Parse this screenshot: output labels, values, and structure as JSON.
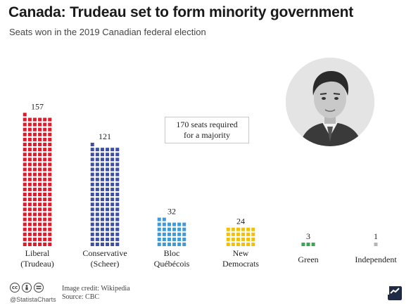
{
  "header": {
    "title": "Canada: Trudeau set to form minority government",
    "subtitle": "Seats won in the 2019 Canadian federal election"
  },
  "note": {
    "line1": "170 seats required",
    "line2": "for a majority"
  },
  "footer": {
    "license_icons": [
      "cc-icon",
      "attribution-icon",
      "no-derivatives-icon"
    ],
    "handle": "@StatistaCharts",
    "image_credit": "Image credit: Wikipedia",
    "source": "Source: CBC"
  },
  "photo": {
    "icon": "portrait-photo"
  },
  "chart_data": {
    "type": "bar",
    "unit": "seats (1 square = 1 seat)",
    "categories": [
      "Liberal (Trudeau)",
      "Conservative (Scheer)",
      "Bloc Québécois",
      "New Democrats",
      "Green",
      "Independent"
    ],
    "category_lines": [
      [
        "Liberal",
        "(Trudeau)"
      ],
      [
        "Conservative",
        "(Scheer)"
      ],
      [
        "Bloc",
        "Québécois"
      ],
      [
        "New",
        "Democrats"
      ],
      [
        "Green"
      ],
      [
        "Independent"
      ]
    ],
    "values": [
      157,
      121,
      32,
      24,
      3,
      1
    ],
    "colors": [
      "#e3192b",
      "#3f4fa3",
      "#3e9ad8",
      "#f2c200",
      "#3aa853",
      "#b5b5b5"
    ]
  }
}
